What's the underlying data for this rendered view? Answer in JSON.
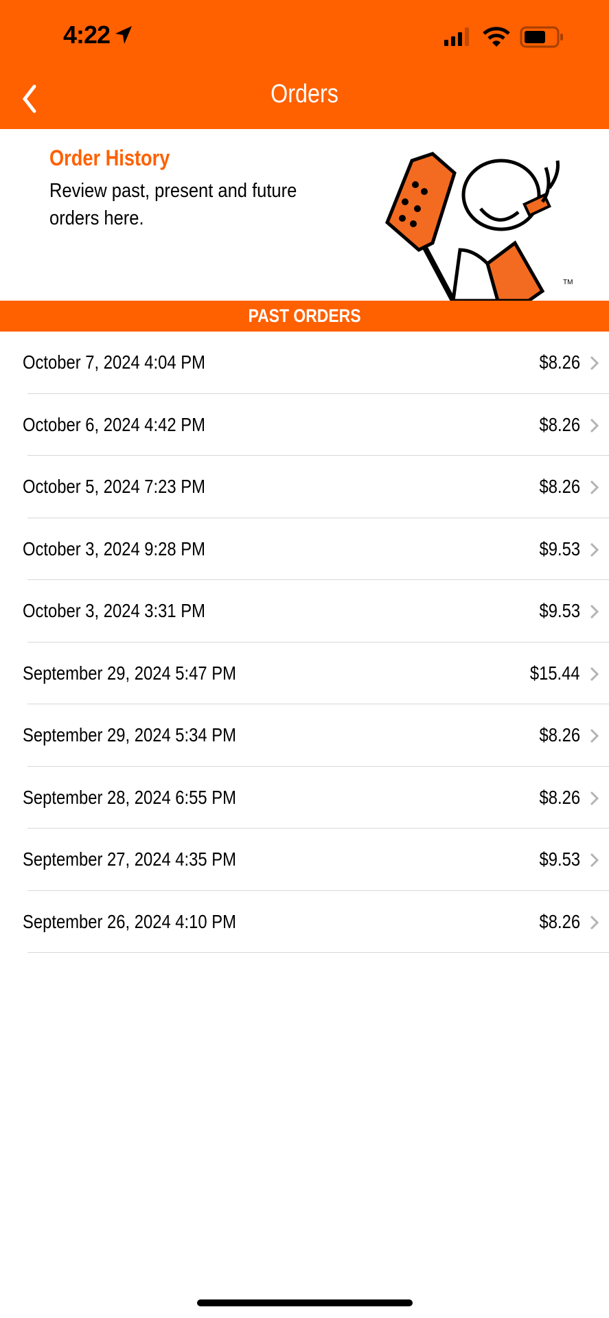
{
  "status_bar": {
    "time": "4:22"
  },
  "nav": {
    "title": "Orders"
  },
  "banner": {
    "heading": "Order History",
    "subtitle": "Review past, present and future orders here.",
    "trademark": "TM"
  },
  "section": {
    "label": "PAST ORDERS"
  },
  "orders": [
    {
      "date": "October 7, 2024 4:04 PM",
      "amount": "$8.26"
    },
    {
      "date": "October 6, 2024 4:42 PM",
      "amount": "$8.26"
    },
    {
      "date": "October 5, 2024 7:23 PM",
      "amount": "$8.26"
    },
    {
      "date": "October 3, 2024 9:28 PM",
      "amount": "$9.53"
    },
    {
      "date": "October 3, 2024 3:31 PM",
      "amount": "$9.53"
    },
    {
      "date": "September 29, 2024 5:47 PM",
      "amount": "$15.44"
    },
    {
      "date": "September 29, 2024 5:34 PM",
      "amount": "$8.26"
    },
    {
      "date": "September 28, 2024 6:55 PM",
      "amount": "$8.26"
    },
    {
      "date": "September 27, 2024 4:35 PM",
      "amount": "$9.53"
    },
    {
      "date": "September 26, 2024 4:10 PM",
      "amount": "$8.26"
    }
  ],
  "colors": {
    "brand": "#ff6000"
  }
}
